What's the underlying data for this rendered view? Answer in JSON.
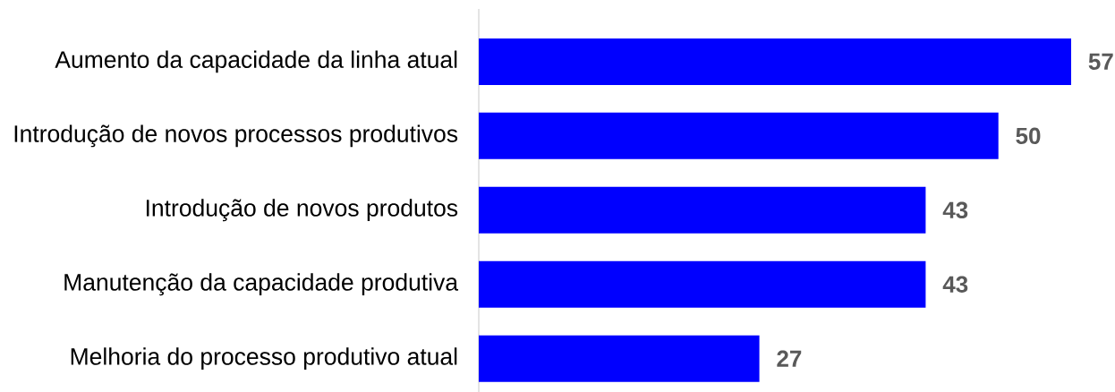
{
  "chart_data": {
    "type": "bar",
    "orientation": "horizontal",
    "categories": [
      "Aumento da capacidade da linha atual",
      "Introdução de novos processos produtivos",
      "Introdução de novos produtos",
      "Manutenção da capacidade produtiva",
      "Melhoria do processo produtivo atual"
    ],
    "values": [
      57,
      50,
      43,
      43,
      27
    ],
    "color": "#0000ff",
    "data_labels": true
  }
}
